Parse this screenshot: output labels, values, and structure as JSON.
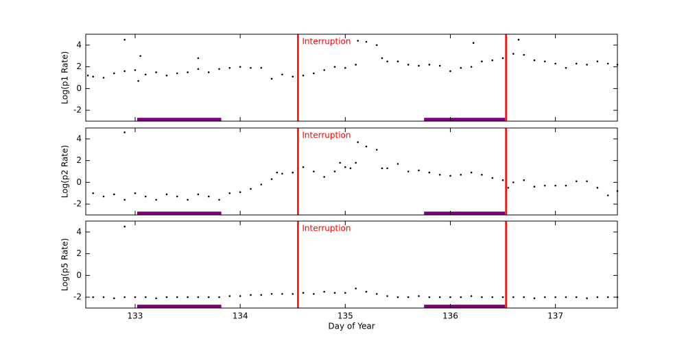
{
  "chart_data": [
    {
      "type": "scatter",
      "ylabel": "Log(p1 Rate)",
      "annotation": "Interruption",
      "xlim": [
        132.53,
        137.59
      ],
      "ylim": [
        -3,
        5
      ],
      "yticks": [
        -2,
        0,
        2,
        4
      ],
      "color": "#000000",
      "vlines": [
        134.55,
        136.53
      ],
      "vline_color": "#ff0000",
      "bands": [
        [
          133.02,
          133.82
        ],
        [
          135.75,
          136.52
        ]
      ],
      "band_y": -2.85,
      "band_color": "#800080",
      "x": [
        132.55,
        132.6,
        132.7,
        132.8,
        132.9,
        132.9,
        133.0,
        133.03,
        133.05,
        133.1,
        133.2,
        133.3,
        133.4,
        133.5,
        133.6,
        133.6,
        133.7,
        133.8,
        133.9,
        134.0,
        134.1,
        134.2,
        134.3,
        134.4,
        134.5,
        134.6,
        134.7,
        134.8,
        134.9,
        135.0,
        135.1,
        135.12,
        135.2,
        135.3,
        135.35,
        135.4,
        135.5,
        135.6,
        135.7,
        135.8,
        135.9,
        136.0,
        136.1,
        136.2,
        136.22,
        136.3,
        136.4,
        136.5,
        136.6,
        136.65,
        136.7,
        136.8,
        136.9,
        137.0,
        137.1,
        137.2,
        137.3,
        137.4,
        137.5,
        137.59
      ],
      "y": [
        1.2,
        1.1,
        1.0,
        1.4,
        1.6,
        4.5,
        1.7,
        0.7,
        3.0,
        1.3,
        1.5,
        1.2,
        1.4,
        1.5,
        1.8,
        2.8,
        1.5,
        1.8,
        1.9,
        2.0,
        1.9,
        1.9,
        0.9,
        1.3,
        1.1,
        1.2,
        1.4,
        1.7,
        2.0,
        1.9,
        2.2,
        4.4,
        4.3,
        4.0,
        2.8,
        2.5,
        2.5,
        2.2,
        2.1,
        2.2,
        2.1,
        1.6,
        1.9,
        2.0,
        4.2,
        2.5,
        2.6,
        2.8,
        3.2,
        4.5,
        3.1,
        2.6,
        2.5,
        2.3,
        1.9,
        2.3,
        2.2,
        2.5,
        2.3,
        2.2
      ]
    },
    {
      "type": "scatter",
      "ylabel": "Log(p2 Rate)",
      "annotation": "Interruption",
      "xlim": [
        132.53,
        137.59
      ],
      "ylim": [
        -3,
        5
      ],
      "yticks": [
        -2,
        0,
        2,
        4
      ],
      "color": "#000000",
      "vlines": [
        134.55,
        136.53
      ],
      "vline_color": "#ff0000",
      "bands": [
        [
          133.02,
          133.82
        ],
        [
          135.75,
          136.52
        ]
      ],
      "band_y": -2.85,
      "band_color": "#800080",
      "x": [
        132.6,
        132.7,
        132.8,
        132.9,
        132.9,
        133.0,
        133.1,
        133.2,
        133.3,
        133.4,
        133.5,
        133.6,
        133.7,
        133.8,
        133.9,
        134.0,
        134.1,
        134.2,
        134.3,
        134.35,
        134.4,
        134.5,
        134.55,
        134.6,
        134.7,
        134.8,
        134.9,
        134.95,
        135.0,
        135.05,
        135.1,
        135.12,
        135.2,
        135.3,
        135.35,
        135.4,
        135.5,
        135.6,
        135.7,
        135.8,
        135.9,
        136.0,
        136.1,
        136.2,
        136.3,
        136.4,
        136.5,
        136.55,
        136.6,
        136.7,
        136.8,
        136.9,
        137.0,
        137.1,
        137.2,
        137.3,
        137.4,
        137.5,
        137.59
      ],
      "y": [
        -1.0,
        -1.3,
        -1.1,
        -1.6,
        4.6,
        -1.0,
        -1.3,
        -1.6,
        -1.1,
        -1.3,
        -1.6,
        -1.1,
        -1.3,
        -1.6,
        -1.0,
        -0.9,
        -0.6,
        -0.2,
        0.3,
        0.9,
        0.8,
        0.9,
        1.3,
        1.4,
        1.0,
        0.5,
        1.0,
        1.8,
        1.4,
        1.3,
        1.8,
        3.7,
        3.3,
        3.0,
        1.3,
        1.3,
        1.7,
        1.0,
        1.1,
        0.9,
        0.7,
        0.6,
        0.7,
        0.9,
        0.7,
        0.4,
        0.2,
        -0.5,
        0.0,
        0.2,
        -0.4,
        -0.3,
        -0.3,
        -0.3,
        0.1,
        0.1,
        -0.5,
        -1.2,
        -0.8
      ]
    },
    {
      "type": "scatter",
      "ylabel": "Log(p5 Rate)",
      "annotation": "Interruption",
      "xlabel": "Day of Year",
      "xlim": [
        132.53,
        137.59
      ],
      "xticks": [
        133,
        134,
        135,
        136,
        137
      ],
      "ylim": [
        -3,
        5
      ],
      "yticks": [
        -2,
        0,
        2,
        4
      ],
      "color": "#000000",
      "vlines": [
        134.55,
        136.53
      ],
      "vline_color": "#ff0000",
      "bands": [
        [
          133.02,
          133.82
        ],
        [
          135.75,
          136.52
        ]
      ],
      "band_y": -2.85,
      "band_color": "#800080",
      "x": [
        132.6,
        132.7,
        132.8,
        132.9,
        132.9,
        133.0,
        133.1,
        133.2,
        133.3,
        133.4,
        133.5,
        133.6,
        133.7,
        133.8,
        133.9,
        134.0,
        134.1,
        134.2,
        134.3,
        134.4,
        134.5,
        134.6,
        134.7,
        134.8,
        134.9,
        135.0,
        135.1,
        135.2,
        135.3,
        135.4,
        135.5,
        135.6,
        135.7,
        135.8,
        135.9,
        136.0,
        136.1,
        136.2,
        136.3,
        136.4,
        136.5,
        136.6,
        136.7,
        136.8,
        136.9,
        137.0,
        137.1,
        137.2,
        137.3,
        137.4,
        137.5,
        137.59
      ],
      "y": [
        -2.0,
        -2.0,
        -2.1,
        -2.0,
        4.5,
        -2.0,
        -2.0,
        -2.1,
        -2.0,
        -2.0,
        -2.0,
        -2.0,
        -2.0,
        -2.0,
        -1.9,
        -1.9,
        -1.8,
        -1.8,
        -1.7,
        -1.7,
        -1.7,
        -1.6,
        -1.7,
        -1.5,
        -1.6,
        -1.6,
        -1.2,
        -1.5,
        -1.7,
        -1.9,
        -2.0,
        -2.0,
        -1.9,
        -2.0,
        -2.0,
        -2.0,
        -2.0,
        -1.9,
        -2.0,
        -2.0,
        -2.0,
        -2.0,
        -2.0,
        -2.1,
        -2.0,
        -2.0,
        -2.0,
        -2.0,
        -2.1,
        -2.0,
        -2.0,
        -2.0
      ]
    }
  ]
}
